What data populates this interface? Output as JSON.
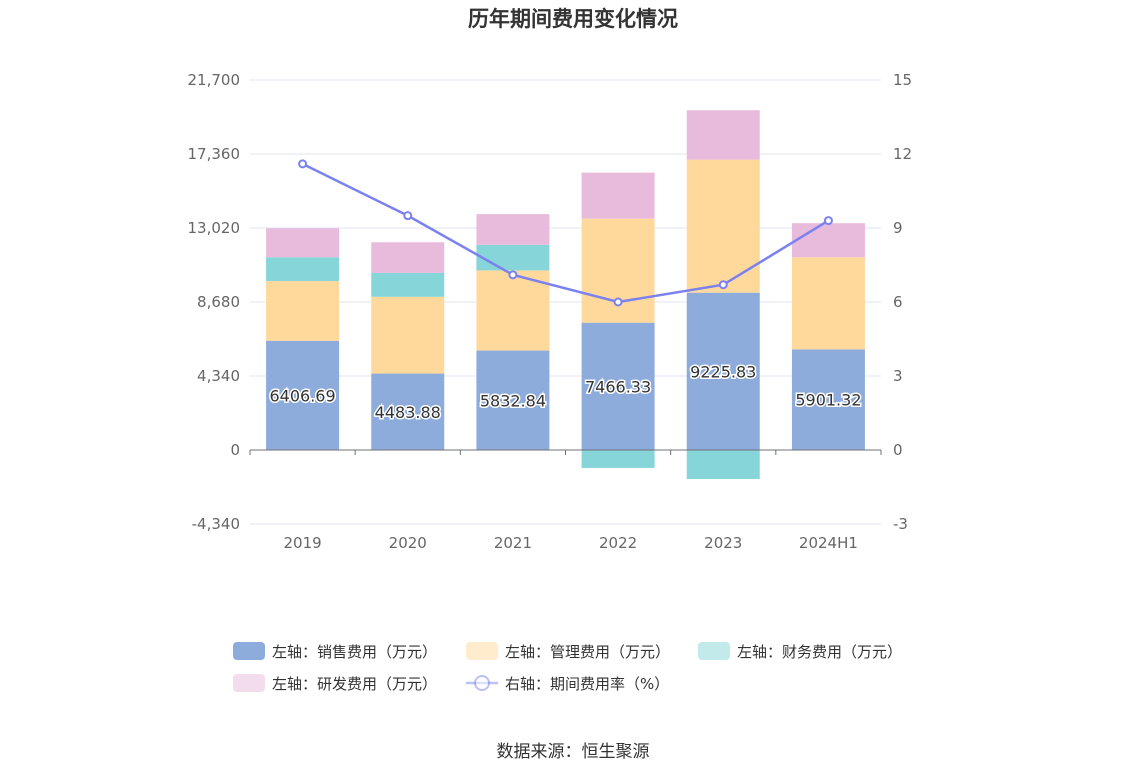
{
  "title": "历年期间费用变化情况",
  "source": "数据来源：恒生聚源",
  "chart_data": {
    "type": "bar",
    "stacked": true,
    "categories": [
      "2019",
      "2020",
      "2021",
      "2022",
      "2023",
      "2024H1"
    ],
    "left_axis": {
      "ticks": [
        "21,700",
        "17,360",
        "13,020",
        "8,680",
        "4,340",
        "0",
        "-4,340"
      ],
      "ylim": [
        -4340,
        21700
      ]
    },
    "right_axis": {
      "ticks": [
        "15",
        "12",
        "9",
        "6",
        "3",
        "0",
        "-3"
      ],
      "ylim": [
        -3,
        15
      ]
    },
    "series": [
      {
        "name": "左轴：销售费用（万元）",
        "color": "#8eacdb",
        "values": [
          6406.69,
          4483.88,
          5832.84,
          7466.33,
          9225.83,
          5901.32
        ],
        "show_labels": true
      },
      {
        "name": "左轴：管理费用（万元）",
        "color": "#ffd99b",
        "values": [
          3500,
          4500,
          4700,
          6100,
          7800,
          5400
        ]
      },
      {
        "name": "左轴：财务费用（万元）",
        "color": "#86d5d8",
        "values": [
          1400,
          1400,
          1500,
          -1050,
          -1700,
          0
        ]
      },
      {
        "name": "左轴：研发费用（万元）",
        "color": "#e8bbdc",
        "values": [
          1700,
          1800,
          1800,
          2700,
          2900,
          2000
        ]
      },
      {
        "name": "右轴：期间费用率（%）",
        "type": "line",
        "axis": "right",
        "color": "#7b82f0",
        "values": [
          11.6,
          9.5,
          7.1,
          6.0,
          6.7,
          9.3
        ]
      }
    ]
  }
}
